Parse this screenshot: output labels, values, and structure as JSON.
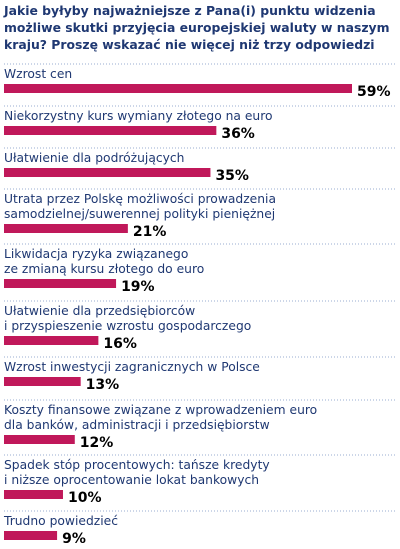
{
  "chart_data": {
    "type": "bar",
    "orientation": "horizontal",
    "title": "Jakie byłyby najważniejsze z Pana(i) punktu widzenia\nmożliwe skutki przyjęcia europejskiej waluty w naszym\nkraju? Proszę wskazać nie więcej niż trzy odpowiedzi",
    "categories": [
      "Wzrost cen",
      "Niekorzystny kurs wymiany złotego na euro",
      "Ułatwienie dla podróżujących",
      "Utrata przez Polskę możliwości prowadzenia\nsamodzielnej/suwerennej polityki pieniężnej",
      "Likwidacja ryzyka związanego\nze zmianą kursu złotego do euro",
      "Ułatwienie dla przedsiębiorców\ni przyspieszenie wzrostu gospodarczego",
      "Wzrost inwestycji zagranicznych w Polsce",
      "Koszty finansowe związane z wprowadzeniem euro\ndla banków, administracji i przedsiębiorstw",
      "Spadek stóp procentowych: tańsze kredyty\ni niższe oprocentowanie lokat bankowych",
      "Trudno powiedzieć"
    ],
    "values": [
      59,
      36,
      35,
      21,
      19,
      16,
      13,
      12,
      10,
      9
    ],
    "value_labels": [
      "59%",
      "36%",
      "35%",
      "21%",
      "19%",
      "16%",
      "13%",
      "12%",
      "10%",
      "9%"
    ],
    "unit": "%",
    "xlim": [
      0,
      59
    ],
    "grid": false,
    "legend": "none",
    "bar_color": "#c0185a",
    "text_color": "#1f3872",
    "divider_color": "#9aaed0"
  }
}
